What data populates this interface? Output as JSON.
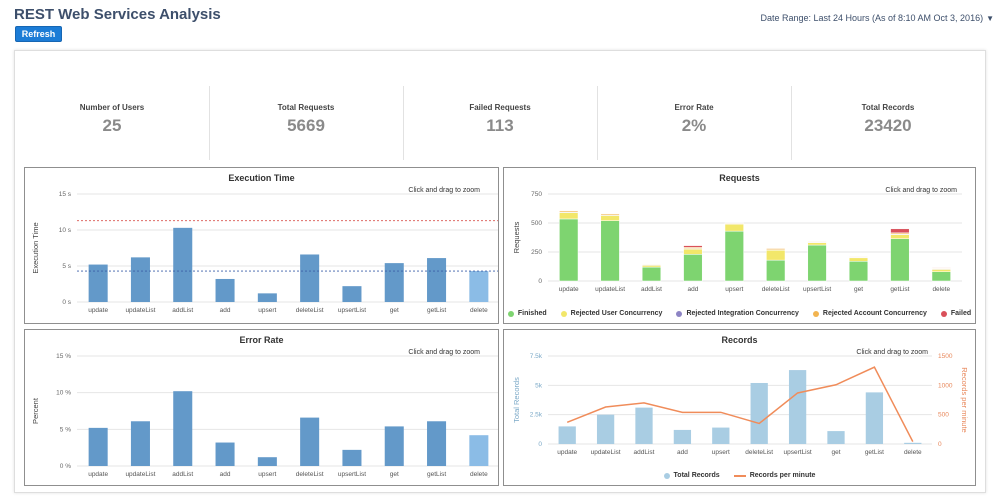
{
  "header": {
    "title": "REST Web Services Analysis",
    "refresh_label": "Refresh",
    "date_range": "Date Range: Last 24 Hours (As of 8:10 AM Oct 3, 2016)"
  },
  "stats": [
    {
      "label": "Number of Users",
      "value": "25"
    },
    {
      "label": "Total Requests",
      "value": "5669"
    },
    {
      "label": "Failed Requests",
      "value": "113"
    },
    {
      "label": "Error Rate",
      "value": "2%"
    },
    {
      "label": "Total Records",
      "value": "23420"
    }
  ],
  "zoom_hint": "Click and drag to zoom",
  "chart_data": [
    {
      "type": "bar",
      "title": "Execution Time",
      "ylabel": "Execution Time",
      "categories": [
        "update",
        "updateList",
        "addList",
        "add",
        "upsert",
        "deleteList",
        "upsertList",
        "get",
        "getList",
        "delete"
      ],
      "values": [
        5.2,
        6.2,
        10.3,
        3.2,
        1.2,
        6.6,
        2.2,
        5.4,
        6.1,
        4.3
      ],
      "ylim": [
        0,
        15
      ],
      "yticks": [
        0,
        5,
        10,
        15
      ],
      "ytick_labels": [
        "0 s",
        "5 s",
        "10 s",
        "15 s"
      ],
      "reference_lines": [
        {
          "value": 11.3,
          "color": "#d9534f"
        },
        {
          "value": 4.3,
          "color": "#3b5fa8"
        }
      ],
      "bar_color": "#6399c9",
      "highlight_color": "#8bbce6",
      "highlight_index": 9
    },
    {
      "type": "bar",
      "stacked": true,
      "title": "Requests",
      "ylabel": "Requests",
      "categories": [
        "update",
        "updateList",
        "addList",
        "add",
        "upsert",
        "deleteList",
        "upsertList",
        "get",
        "getList",
        "delete"
      ],
      "ylim": [
        0,
        750
      ],
      "yticks": [
        0,
        250,
        500,
        750
      ],
      "ytick_labels": [
        "0",
        "250",
        "500",
        "750"
      ],
      "series": [
        {
          "name": "Finished",
          "color": "#7ed470",
          "values": [
            535,
            520,
            120,
            230,
            430,
            180,
            310,
            170,
            365,
            80
          ]
        },
        {
          "name": "Rejected User Concurrency",
          "color": "#f2e76a",
          "values": [
            55,
            45,
            15,
            45,
            60,
            85,
            20,
            30,
            35,
            20
          ]
        },
        {
          "name": "Rejected Integration Concurrency",
          "color": "#8d84c4",
          "values": [
            5,
            5,
            5,
            5,
            5,
            5,
            5,
            5,
            5,
            5
          ]
        },
        {
          "name": "Rejected Account Concurrency",
          "color": "#f2b450",
          "values": [
            10,
            10,
            5,
            10,
            5,
            10,
            5,
            5,
            10,
            5
          ]
        },
        {
          "name": "Failed",
          "color": "#d9505a",
          "values": [
            0,
            0,
            0,
            15,
            0,
            0,
            0,
            0,
            35,
            5
          ]
        }
      ]
    },
    {
      "type": "bar",
      "title": "Error Rate",
      "ylabel": "Percent",
      "categories": [
        "update",
        "updateList",
        "addList",
        "add",
        "upsert",
        "deleteList",
        "upsertList",
        "get",
        "getList",
        "delete"
      ],
      "values": [
        5.2,
        6.1,
        10.2,
        3.2,
        1.2,
        6.6,
        2.2,
        5.4,
        6.1,
        4.2
      ],
      "ylim": [
        0,
        15
      ],
      "yticks": [
        0,
        5,
        10,
        15
      ],
      "ytick_labels": [
        "0 %",
        "5 %",
        "10 %",
        "15 %"
      ],
      "bar_color": "#6399c9",
      "highlight_color": "#8bbce6",
      "highlight_index": 9
    },
    {
      "type": "bar",
      "title": "Records",
      "ylabel": "Total Records",
      "y2label": "Records per minute",
      "categories": [
        "update",
        "updateList",
        "addList",
        "add",
        "upsert",
        "deleteList",
        "upsertList",
        "get",
        "getList",
        "delete"
      ],
      "ylim": [
        0,
        7500
      ],
      "yticks": [
        0,
        2500,
        5000,
        7500
      ],
      "ytick_labels": [
        "0",
        "2.5k",
        "5k",
        "7.5k"
      ],
      "y2lim": [
        0,
        1500
      ],
      "y2ticks": [
        0,
        500,
        1000,
        1500
      ],
      "y2tick_labels": [
        "0",
        "500",
        "1000",
        "1500"
      ],
      "series": [
        {
          "name": "Total Records",
          "type": "bar",
          "color": "#a9cde3",
          "values": [
            1500,
            2500,
            3100,
            1200,
            1400,
            5200,
            6300,
            1100,
            4400,
            100
          ]
        },
        {
          "name": "Records per minute",
          "type": "line",
          "color": "#f08c5a",
          "values": [
            370,
            630,
            700,
            540,
            540,
            350,
            870,
            1010,
            1310,
            40
          ]
        }
      ]
    }
  ]
}
